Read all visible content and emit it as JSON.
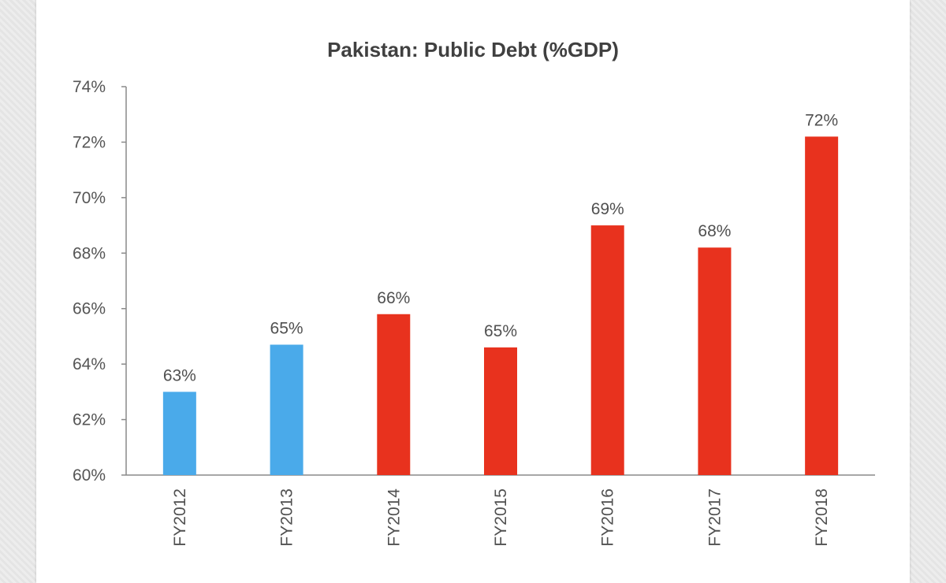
{
  "chart_data": {
    "type": "bar",
    "title": "Pakistan: Public Debt (%GDP)",
    "xlabel": "",
    "ylabel": "",
    "categories": [
      "FY2012",
      "FY2013",
      "FY2014",
      "FY2015",
      "FY2016",
      "FY2017",
      "FY2018"
    ],
    "values": [
      63.0,
      64.7,
      65.8,
      64.6,
      69.0,
      68.2,
      72.2
    ],
    "data_labels": [
      "63%",
      "65%",
      "66%",
      "65%",
      "69%",
      "68%",
      "72%"
    ],
    "bar_colors": [
      "#4aaaea",
      "#4aaaea",
      "#e8321e",
      "#e8321e",
      "#e8321e",
      "#e8321e",
      "#e8321e"
    ],
    "ylim": [
      60,
      74
    ],
    "yticks": [
      60,
      62,
      64,
      66,
      68,
      70,
      72,
      74
    ],
    "ytick_labels": [
      "60%",
      "62%",
      "64%",
      "66%",
      "68%",
      "70%",
      "72%",
      "74%"
    ],
    "grid": false,
    "legend": "none"
  }
}
